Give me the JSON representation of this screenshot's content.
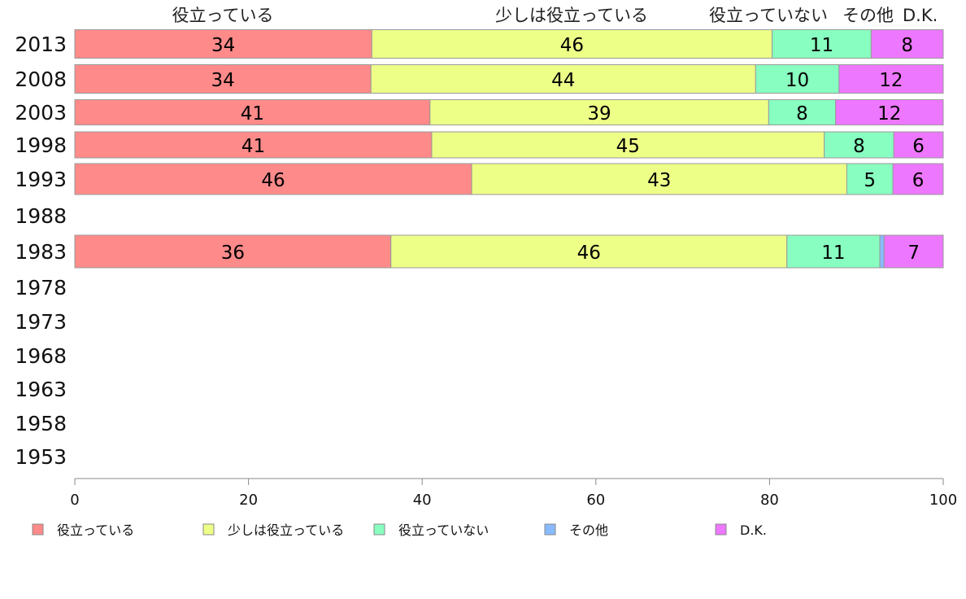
{
  "chart_data": {
    "type": "bar",
    "orientation": "horizontal",
    "stacked": true,
    "categories": [
      "2013",
      "2008",
      "2003",
      "1998",
      "1993",
      "1988",
      "1983",
      "1978",
      "1973",
      "1968",
      "1963",
      "1958",
      "1953"
    ],
    "series": [
      {
        "name": "役立っている",
        "color": "#ff8a8a",
        "values": [
          34.2,
          34.1,
          40.9,
          41.1,
          45.7,
          null,
          36.4,
          null,
          null,
          null,
          null,
          null,
          null
        ]
      },
      {
        "name": "少しは役立っている",
        "color": "#eeff88",
        "values": [
          46.1,
          44.3,
          39.0,
          45.2,
          43.2,
          null,
          45.6,
          null,
          null,
          null,
          null,
          null,
          null
        ]
      },
      {
        "name": "役立っていない",
        "color": "#88ffc0",
        "values": [
          11.4,
          9.6,
          7.7,
          8.0,
          5.3,
          null,
          10.7,
          null,
          null,
          null,
          null,
          null,
          null
        ]
      },
      {
        "name": "その他",
        "color": "#88bbff",
        "values": [
          0,
          0,
          0,
          0,
          0,
          null,
          0.5,
          null,
          null,
          null,
          null,
          null,
          null
        ]
      },
      {
        "name": "D.K.",
        "color": "#ee77ff",
        "values": [
          8.3,
          12.0,
          12.4,
          5.7,
          5.8,
          null,
          6.8,
          null,
          null,
          null,
          null,
          null,
          null
        ]
      }
    ],
    "header_labels": [
      "役立っている",
      "少しは役立っている",
      "役立っていない",
      "その他",
      "D.K."
    ],
    "xlim": [
      0,
      100
    ],
    "xticks": [
      "0",
      "20",
      "40",
      "60",
      "80",
      "100"
    ],
    "legend_position": "bottom",
    "grid": false
  }
}
